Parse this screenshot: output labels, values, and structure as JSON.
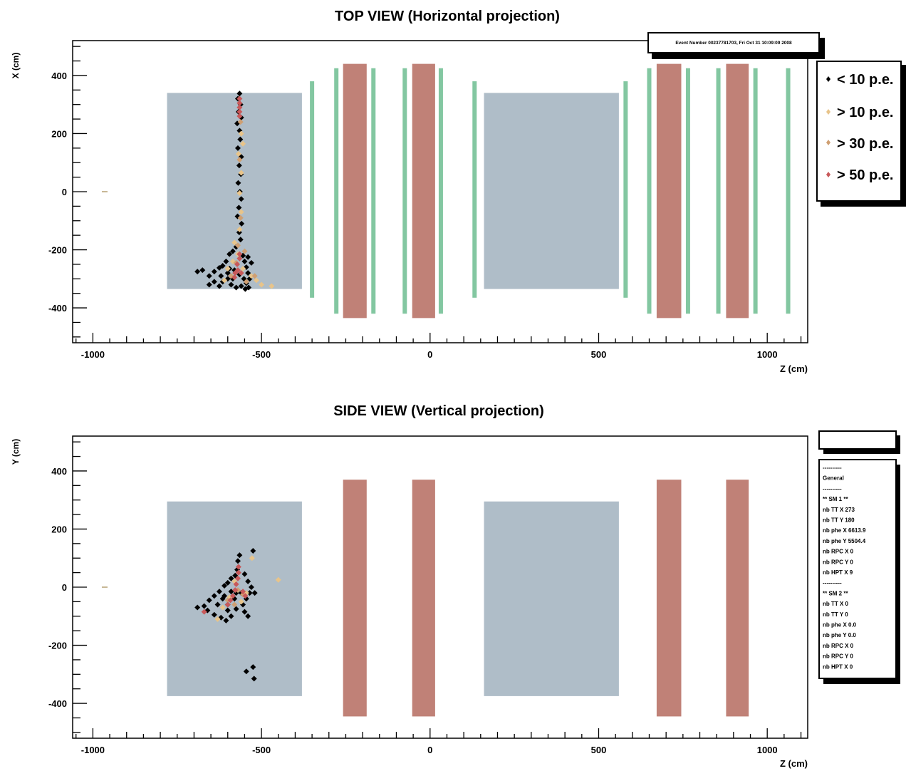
{
  "event_box": {
    "text": "Event Number 00237781703, Fri Oct 31 10:09:09 2008"
  },
  "legend": {
    "entries": [
      {
        "label": "< 10 p.e.",
        "color": "#000000"
      },
      {
        "label": "> 10 p.e.",
        "color": "#e8c48a"
      },
      {
        "label": "> 30 p.e.",
        "color": "#cf9f72"
      },
      {
        "label": "> 50 p.e.",
        "color": "#c8595a"
      }
    ]
  },
  "stats_box": {
    "lines": [
      "----------",
      "General",
      "----------",
      "** SM 1 **",
      "nb TT X 273",
      "nb TT Y 180",
      "nb phe X 6613.9",
      "nb phe Y 5504.4",
      "nb RPC X 0",
      "nb RPC Y 0",
      "nb HPT X 9",
      "----------",
      "** SM 2 **",
      "nb TT X 0",
      "nb TT Y 0",
      "nb phe X    0.0",
      "nb phe Y    0.0",
      "nb RPC X 0",
      "nb RPC Y 0",
      "nb HPT X 0"
    ]
  },
  "colors": {
    "target": "#afbdc8",
    "magnet": "#c08177",
    "rpc": "#83c7a1",
    "hit_lt10": "#000000",
    "hit_gt10": "#e8c48a",
    "hit_gt30": "#cf9f72",
    "hit_gt50": "#c8595a"
  },
  "chart_data": [
    {
      "type": "scatter",
      "title": "TOP VIEW (Horizontal projection)",
      "xlabel": "Z (cm)",
      "ylabel": "X (cm)",
      "xlim": [
        -1060,
        1120
      ],
      "ylim": [
        -520,
        520
      ],
      "xticks": [
        -1000,
        -500,
        0,
        500,
        1000
      ],
      "yticks": [
        -400,
        -200,
        0,
        200,
        400
      ],
      "target_regions": [
        {
          "z": [
            -780,
            -380
          ],
          "x": [
            -335,
            340
          ]
        },
        {
          "z": [
            160,
            560
          ],
          "x": [
            -335,
            340
          ]
        }
      ],
      "magnet_regions": [
        {
          "z": [
            -258,
            -188
          ],
          "x": [
            -435,
            440
          ]
        },
        {
          "z": [
            -53,
            15
          ],
          "x": [
            -435,
            440
          ]
        },
        {
          "z": [
            672,
            745
          ],
          "x": [
            -435,
            440
          ]
        },
        {
          "z": [
            878,
            945
          ],
          "x": [
            -435,
            440
          ]
        }
      ],
      "rpc_planes": [
        {
          "z": -350,
          "x": [
            -365,
            380
          ]
        },
        {
          "z": -278,
          "x": [
            -420,
            425
          ]
        },
        {
          "z": -168,
          "x": [
            -420,
            425
          ]
        },
        {
          "z": -75,
          "x": [
            -420,
            425
          ]
        },
        {
          "z": 32,
          "x": [
            -420,
            425
          ]
        },
        {
          "z": 132,
          "x": [
            -365,
            380
          ]
        },
        {
          "z": 580,
          "x": [
            -365,
            380
          ]
        },
        {
          "z": 650,
          "x": [
            -420,
            425
          ]
        },
        {
          "z": 765,
          "x": [
            -420,
            425
          ]
        },
        {
          "z": 855,
          "x": [
            -420,
            425
          ]
        },
        {
          "z": 965,
          "x": [
            -420,
            425
          ]
        },
        {
          "z": 1062,
          "x": [
            -420,
            425
          ]
        }
      ],
      "vertex_marker": {
        "z": -965,
        "x": 0
      },
      "hits": {
        "lt10": [
          [
            -565,
            338
          ],
          [
            -570,
            320
          ],
          [
            -562,
            300
          ],
          [
            -568,
            275
          ],
          [
            -560,
            255
          ],
          [
            -572,
            235
          ],
          [
            -565,
            210
          ],
          [
            -563,
            180
          ],
          [
            -570,
            150
          ],
          [
            -560,
            120
          ],
          [
            -566,
            90
          ],
          [
            -561,
            60
          ],
          [
            -569,
            30
          ],
          [
            -564,
            0
          ],
          [
            -560,
            -25
          ],
          [
            -567,
            -55
          ],
          [
            -571,
            -85
          ],
          [
            -559,
            -110
          ],
          [
            -566,
            -140
          ],
          [
            -562,
            -165
          ],
          [
            -575,
            -190
          ],
          [
            -585,
            -205
          ],
          [
            -595,
            -215
          ],
          [
            -605,
            -240
          ],
          [
            -615,
            -255
          ],
          [
            -625,
            -262
          ],
          [
            -640,
            -275
          ],
          [
            -655,
            -290
          ],
          [
            -675,
            -270
          ],
          [
            -690,
            -275
          ],
          [
            -600,
            -300
          ],
          [
            -590,
            -320
          ],
          [
            -575,
            -330
          ],
          [
            -560,
            -325
          ],
          [
            -545,
            -315
          ],
          [
            -535,
            -300
          ],
          [
            -540,
            -280
          ],
          [
            -545,
            -260
          ],
          [
            -550,
            -240
          ],
          [
            -555,
            -220
          ],
          [
            -530,
            -245
          ],
          [
            -540,
            -225
          ],
          [
            -615,
            -310
          ],
          [
            -625,
            -325
          ],
          [
            -640,
            -310
          ],
          [
            -655,
            -320
          ],
          [
            -600,
            -280
          ],
          [
            -580,
            -270
          ],
          [
            -565,
            -285
          ],
          [
            -552,
            -300
          ],
          [
            -538,
            -330
          ],
          [
            -548,
            -335
          ],
          [
            -585,
            -300
          ],
          [
            -595,
            -265
          ],
          [
            -620,
            -290
          ]
        ],
        "gt10": [
          [
            -560,
            200
          ],
          [
            -555,
            165
          ],
          [
            -568,
            130
          ],
          [
            -560,
            65
          ],
          [
            -565,
            -5
          ],
          [
            -560,
            -70
          ],
          [
            -565,
            -130
          ],
          [
            -580,
            -175
          ],
          [
            -570,
            -215
          ],
          [
            -555,
            -265
          ],
          [
            -530,
            -290
          ],
          [
            -515,
            -305
          ],
          [
            -500,
            -320
          ],
          [
            -470,
            -325
          ],
          [
            -585,
            -240
          ],
          [
            -600,
            -265
          ],
          [
            -610,
            -305
          ]
        ],
        "gt30": [
          [
            -562,
            240
          ],
          [
            -565,
            110
          ],
          [
            -562,
            -90
          ],
          [
            -570,
            -185
          ],
          [
            -550,
            -205
          ],
          [
            -575,
            -245
          ],
          [
            -590,
            -290
          ],
          [
            -545,
            -310
          ],
          [
            -520,
            -290
          ]
        ],
        "gt50": [
          [
            -565,
            320
          ],
          [
            -565,
            305
          ],
          [
            -565,
            290
          ],
          [
            -565,
            275
          ],
          [
            -565,
            260
          ],
          [
            -565,
            -215
          ],
          [
            -565,
            -230
          ],
          [
            -572,
            -250
          ],
          [
            -570,
            -270
          ],
          [
            -578,
            -280
          ],
          [
            -580,
            -295
          ],
          [
            -560,
            -280
          ]
        ]
      }
    },
    {
      "type": "scatter",
      "title": "SIDE VIEW (Vertical projection)",
      "xlabel": "Z (cm)",
      "ylabel": "Y (cm)",
      "xlim": [
        -1060,
        1120
      ],
      "ylim": [
        -520,
        520
      ],
      "xticks": [
        -1000,
        -500,
        0,
        500,
        1000
      ],
      "yticks": [
        -400,
        -200,
        0,
        200,
        400
      ],
      "target_regions": [
        {
          "z": [
            -780,
            -380
          ],
          "y": [
            -375,
            295
          ]
        },
        {
          "z": [
            160,
            560
          ],
          "y": [
            -375,
            295
          ]
        }
      ],
      "magnet_regions": [
        {
          "z": [
            -258,
            -188
          ],
          "y": [
            -445,
            370
          ]
        },
        {
          "z": [
            -53,
            15
          ],
          "y": [
            -445,
            370
          ]
        },
        {
          "z": [
            672,
            745
          ],
          "y": [
            -445,
            370
          ]
        },
        {
          "z": [
            878,
            945
          ],
          "y": [
            -445,
            370
          ]
        }
      ],
      "vertex_marker": {
        "z": -965,
        "y": 0
      },
      "hits": {
        "lt10": [
          [
            -565,
            110
          ],
          [
            -570,
            90
          ],
          [
            -572,
            60
          ],
          [
            -578,
            40
          ],
          [
            -590,
            30
          ],
          [
            -600,
            15
          ],
          [
            -610,
            5
          ],
          [
            -625,
            -15
          ],
          [
            -640,
            -30
          ],
          [
            -655,
            -45
          ],
          [
            -670,
            -65
          ],
          [
            -690,
            -70
          ],
          [
            -660,
            -80
          ],
          [
            -640,
            -95
          ],
          [
            -620,
            -105
          ],
          [
            -605,
            -115
          ],
          [
            -590,
            -100
          ],
          [
            -575,
            -75
          ],
          [
            -555,
            -60
          ],
          [
            -545,
            -40
          ],
          [
            -535,
            -20
          ],
          [
            -520,
            -20
          ],
          [
            -530,
            0
          ],
          [
            -540,
            20
          ],
          [
            -550,
            45
          ],
          [
            -525,
            125
          ],
          [
            -600,
            -60
          ],
          [
            -615,
            -40
          ],
          [
            -580,
            -40
          ],
          [
            -560,
            -20
          ],
          [
            -590,
            -15
          ],
          [
            -600,
            -80
          ],
          [
            -550,
            -85
          ],
          [
            -540,
            -100
          ],
          [
            -545,
            -290
          ],
          [
            -525,
            -275
          ],
          [
            -522,
            -315
          ],
          [
            -610,
            -30
          ],
          [
            -630,
            -60
          ],
          [
            -575,
            -20
          ]
        ],
        "gt10": [
          [
            -580,
            20
          ],
          [
            -595,
            -35
          ],
          [
            -615,
            -70
          ],
          [
            -630,
            -110
          ],
          [
            -560,
            -50
          ],
          [
            -545,
            -20
          ],
          [
            -450,
            25
          ],
          [
            -528,
            100
          ]
        ],
        "gt30": [
          [
            -570,
            -10
          ],
          [
            -580,
            -60
          ],
          [
            -600,
            -45
          ],
          [
            -555,
            -25
          ]
        ],
        "gt50": [
          [
            -568,
            70
          ],
          [
            -568,
            50
          ],
          [
            -570,
            30
          ],
          [
            -575,
            10
          ],
          [
            -578,
            -10
          ],
          [
            -585,
            -30
          ],
          [
            -592,
            -45
          ],
          [
            -600,
            -60
          ],
          [
            -555,
            -15
          ],
          [
            -548,
            -30
          ],
          [
            -670,
            -85
          ]
        ]
      }
    }
  ]
}
